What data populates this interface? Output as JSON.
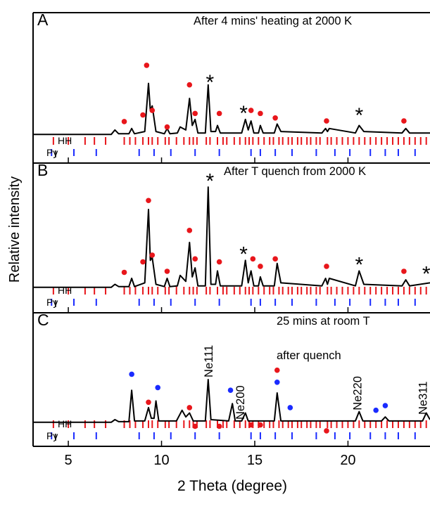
{
  "chart_data": [
    {
      "type": "line",
      "panel": "A",
      "title": "After 4 mins' heating at 2000 K",
      "xlim": [
        3.11,
        24.4
      ],
      "xticks": [
        5,
        10,
        15,
        20
      ],
      "ylim": [
        0,
        100
      ],
      "x": [
        3.1,
        7.3,
        7.5,
        7.7,
        8.25,
        8.4,
        8.55,
        9.1,
        9.3,
        9.4,
        9.5,
        9.7,
        10.15,
        10.3,
        10.45,
        10.85,
        11.0,
        11.3,
        11.5,
        11.65,
        11.8,
        11.95,
        12.35,
        12.5,
        12.65,
        12.9,
        13.0,
        13.15,
        14.3,
        14.5,
        14.65,
        14.8,
        14.95,
        15.2,
        15.3,
        15.45,
        16.05,
        16.2,
        16.4,
        18.6,
        18.8,
        18.9,
        19.0,
        20.4,
        20.6,
        20.85,
        22.9,
        23.1,
        23.3,
        24.4
      ],
      "values": [
        19,
        19,
        22,
        19.5,
        19.5,
        23,
        19.5,
        21,
        53,
        35,
        38,
        21,
        19.5,
        23,
        19.5,
        20,
        24,
        22,
        43,
        25,
        29,
        20,
        20,
        52,
        21,
        21,
        25,
        20,
        20,
        29,
        22,
        28,
        20,
        20,
        25,
        20,
        20,
        26,
        21,
        20,
        23,
        21,
        23,
        20,
        25,
        21,
        20,
        23,
        20,
        20
      ],
      "color": "#000000",
      "markers": [
        {
          "color": "#e8161b",
          "x": [
            8.0,
            9.2,
            9.0,
            9.5,
            10.3,
            11.5,
            11.8,
            13.1,
            14.8,
            15.3,
            16.1,
            18.85,
            23.0
          ],
          "values": [
            27.6,
            65,
            32,
            35,
            24,
            52,
            33,
            33,
            35,
            33,
            30,
            28,
            28
          ]
        }
      ],
      "annotations": [
        {
          "text": "*",
          "x": 12.6,
          "y": 55.6
        },
        {
          "text": "*",
          "x": 14.4,
          "y": 35
        },
        {
          "text": "*",
          "x": 20.6,
          "y": 33.6
        }
      ],
      "reflections": [
        {
          "name": "HH",
          "color": "#e8161b",
          "x": [
            4.2,
            5.0,
            5.9,
            6.4,
            7.0,
            8.0,
            8.3,
            8.6,
            9.0,
            9.3,
            9.5,
            9.8,
            10.2,
            10.4,
            10.8,
            11.2,
            11.5,
            11.7,
            11.9,
            12.4,
            12.6,
            13.0,
            13.3,
            13.5,
            13.9,
            14.2,
            14.5,
            14.7,
            14.9,
            15.2,
            15.5,
            15.8,
            16.0,
            16.3,
            16.5,
            16.8,
            17.0,
            17.3,
            17.5,
            17.8,
            18.0,
            18.3,
            18.5,
            18.9,
            19.1,
            19.4,
            19.7,
            20.0,
            20.3,
            20.6,
            20.9,
            21.2,
            21.5,
            21.8,
            22.1,
            22.4,
            22.7,
            23.0,
            23.3,
            23.6,
            23.9,
            24.2
          ]
        },
        {
          "name": "Py",
          "color": "#1a2bff",
          "x": [
            4.1,
            5.3,
            6.5,
            8.8,
            9.6,
            10.5,
            11.8,
            13.1,
            14.8,
            15.3,
            16.1,
            17.0,
            18.3,
            19.3,
            20.1,
            21.2,
            22.0,
            22.7,
            23.6
          ]
        }
      ]
    },
    {
      "type": "line",
      "panel": "B",
      "title": "After T quench from 2000 K",
      "ylabel": "Relative intensity",
      "xlim": [
        3.11,
        24.4
      ],
      "xticks": [
        5,
        10,
        15,
        20
      ],
      "ylim": [
        0,
        100
      ],
      "x": [
        3.1,
        7.3,
        7.5,
        7.7,
        8.25,
        8.4,
        8.55,
        9.1,
        9.3,
        9.4,
        9.5,
        9.7,
        10.15,
        10.3,
        10.45,
        10.85,
        11.0,
        11.3,
        11.5,
        11.65,
        11.8,
        11.95,
        12.35,
        12.5,
        12.65,
        12.9,
        13.0,
        13.15,
        14.3,
        14.5,
        14.65,
        14.8,
        14.95,
        15.2,
        15.3,
        15.45,
        16.05,
        16.2,
        16.4,
        18.6,
        18.8,
        18.9,
        19.0,
        20.4,
        20.6,
        20.85,
        22.9,
        23.1,
        23.3,
        24.4
      ],
      "values": [
        17,
        17,
        19,
        17.5,
        17.5,
        23,
        17.5,
        20,
        69,
        35,
        37,
        19,
        17.5,
        23,
        17.5,
        18,
        25,
        21,
        47,
        24,
        30,
        18,
        18,
        84,
        19,
        19,
        28,
        18,
        18,
        35,
        20,
        28,
        18,
        18,
        24,
        18,
        18,
        33,
        20,
        18,
        23,
        19,
        23,
        18,
        28,
        19,
        18,
        22,
        18,
        20
      ],
      "color": "#000000",
      "markers": [
        {
          "color": "#e8161b",
          "x": [
            8.0,
            9.3,
            9.0,
            9.5,
            10.3,
            11.5,
            11.8,
            13.1,
            14.9,
            15.3,
            16.1,
            18.85,
            23.0
          ],
          "values": [
            27,
            75,
            34,
            38.5,
            27.7,
            55,
            36,
            34,
            36,
            31,
            36,
            31,
            27.7
          ]
        }
      ],
      "annotations": [
        {
          "text": "*",
          "x": 12.6,
          "y": 90
        },
        {
          "text": "*",
          "x": 14.4,
          "y": 41
        },
        {
          "text": "*",
          "x": 20.6,
          "y": 34
        },
        {
          "text": "*",
          "x": 24.2,
          "y": 28
        }
      ],
      "reflections": [
        {
          "name": "HH",
          "color": "#e8161b",
          "x": [
            4.2,
            5.0,
            5.9,
            6.4,
            7.0,
            8.0,
            8.3,
            8.6,
            9.0,
            9.3,
            9.5,
            9.8,
            10.2,
            10.4,
            10.8,
            11.2,
            11.5,
            11.7,
            11.9,
            12.4,
            12.6,
            13.0,
            13.3,
            13.5,
            13.9,
            14.2,
            14.5,
            14.7,
            14.9,
            15.2,
            15.5,
            15.8,
            16.0,
            16.3,
            16.5,
            16.8,
            17.0,
            17.3,
            17.5,
            17.8,
            18.0,
            18.3,
            18.5,
            18.9,
            19.1,
            19.4,
            19.7,
            20.0,
            20.3,
            20.6,
            20.9,
            21.2,
            21.5,
            21.8,
            22.1,
            22.4,
            22.7,
            23.0,
            23.3,
            23.6,
            23.9,
            24.2
          ]
        },
        {
          "name": "Py",
          "color": "#1a2bff",
          "x": [
            4.1,
            5.3,
            6.5,
            8.8,
            9.6,
            10.5,
            11.8,
            13.1,
            14.8,
            15.3,
            16.1,
            17.0,
            18.3,
            19.3,
            20.1,
            21.2,
            22.0,
            22.7,
            23.6
          ]
        }
      ]
    },
    {
      "type": "line",
      "panel": "C",
      "title": "25 mins at room T",
      "subtitle": "after quench",
      "xlabel": "2 Theta (degree)",
      "xlim": [
        3.11,
        24.4
      ],
      "xticks": [
        5,
        10,
        15,
        20
      ],
      "ylim": [
        0,
        100
      ],
      "x": [
        3.1,
        7.3,
        7.5,
        7.7,
        8.25,
        8.4,
        8.55,
        9.1,
        9.3,
        9.45,
        9.6,
        9.7,
        9.85,
        10.8,
        11.1,
        11.3,
        11.5,
        11.7,
        12.35,
        12.5,
        12.65,
        13.6,
        13.8,
        13.95,
        14.3,
        14.5,
        14.65,
        16.05,
        16.2,
        16.4,
        20.4,
        20.6,
        20.8,
        21.8,
        22.0,
        22.2,
        24.0,
        24.2,
        24.4
      ],
      "values": [
        18,
        18,
        20,
        18.5,
        18.5,
        42,
        19,
        19,
        29,
        21,
        21,
        34,
        19,
        19,
        27,
        22,
        25,
        19,
        19,
        50,
        20,
        19,
        32,
        19,
        19,
        25,
        19,
        19,
        40,
        19,
        19,
        26,
        19,
        19,
        22,
        19,
        19,
        25,
        20
      ],
      "color": "#000000",
      "markers": [
        {
          "color": "#1a2bff",
          "x": [
            8.4,
            9.8,
            13.7,
            16.2,
            16.9,
            21.5,
            22.0
          ],
          "values": [
            54,
            44,
            42,
            48,
            29,
            27,
            30.5
          ]
        },
        {
          "color": "#e8161b",
          "x": [
            9.3,
            11.5,
            11.8,
            13.1,
            14.8,
            15.3,
            16.2,
            18.85
          ],
          "values": [
            33,
            29,
            15,
            15,
            16,
            16,
            57,
            11.6
          ]
        }
      ],
      "labels": [
        {
          "text": "Ne111",
          "x": 12.5,
          "y": 51.6
        },
        {
          "text": "Ne200",
          "x": 14.2,
          "y": 20
        },
        {
          "text": "Ne220",
          "x": 20.5,
          "y": 27
        },
        {
          "text": "Ne311",
          "x": 24.0,
          "y": 23.7
        }
      ],
      "reflections": [
        {
          "name": "HH",
          "color": "#e8161b",
          "x": [
            4.2,
            5.0,
            5.9,
            6.4,
            7.0,
            8.0,
            8.3,
            8.6,
            9.0,
            9.3,
            9.5,
            9.8,
            10.2,
            10.4,
            10.8,
            11.2,
            11.5,
            11.7,
            11.9,
            12.4,
            12.6,
            13.0,
            13.3,
            13.5,
            13.9,
            14.2,
            14.5,
            14.7,
            14.9,
            15.2,
            15.5,
            15.8,
            16.0,
            16.3,
            16.5,
            16.8,
            17.0,
            17.3,
            17.5,
            17.8,
            18.0,
            18.3,
            18.5,
            18.9,
            19.1,
            19.4,
            19.7,
            20.0,
            20.3,
            20.6,
            20.9,
            21.2,
            21.5,
            21.8,
            22.1,
            22.4,
            22.7,
            23.0,
            23.3,
            23.6,
            23.9,
            24.2
          ]
        },
        {
          "name": "Py",
          "color": "#1a2bff",
          "x": [
            4.1,
            5.3,
            6.5,
            8.8,
            9.6,
            10.5,
            11.8,
            13.1,
            14.8,
            15.3,
            16.1,
            17.0,
            18.3,
            19.3,
            20.1,
            21.2,
            22.0,
            22.7,
            23.6
          ]
        }
      ]
    }
  ]
}
